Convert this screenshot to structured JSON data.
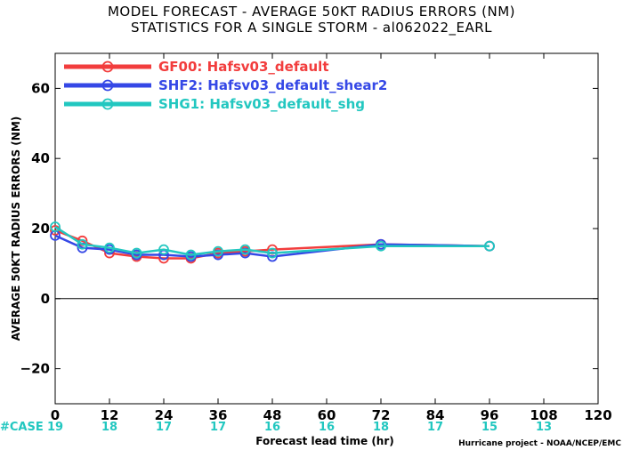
{
  "chart_data": {
    "type": "line",
    "title_line1": "MODEL FORECAST - AVERAGE 50KT RADIUS ERRORS (NM)",
    "title_line2": "STATISTICS FOR A SINGLE STORM - al062022_EARL",
    "xlabel": "Forecast lead time (hr)",
    "ylabel": "AVERAGE 50KT RADIUS ERRORS (NM)",
    "credit": "Hurricane project - NOAA/NCEP/EMC",
    "xlim": [
      0,
      120
    ],
    "ylim": [
      -30,
      70
    ],
    "xticks": [
      0,
      12,
      24,
      36,
      48,
      60,
      72,
      84,
      96,
      108,
      120
    ],
    "yticks": [
      -20,
      0,
      20,
      40,
      60
    ],
    "zero_line": true,
    "legend_position": "top-left",
    "case_label": "#CASE",
    "cases": [
      {
        "x": 0,
        "n": "19"
      },
      {
        "x": 12,
        "n": "18"
      },
      {
        "x": 24,
        "n": "17"
      },
      {
        "x": 36,
        "n": "17"
      },
      {
        "x": 48,
        "n": "16"
      },
      {
        "x": 60,
        "n": "16"
      },
      {
        "x": 72,
        "n": "18"
      },
      {
        "x": 84,
        "n": "17"
      },
      {
        "x": 96,
        "n": "15"
      },
      {
        "x": 108,
        "n": "13"
      }
    ],
    "series": [
      {
        "name": "GF00: Hafsv03_default",
        "color": "#f23d3d",
        "x": [
          0,
          6,
          12,
          18,
          24,
          30,
          36,
          42,
          48,
          72,
          96
        ],
        "y": [
          19.5,
          16.5,
          13.0,
          12.0,
          11.5,
          11.5,
          13.0,
          13.5,
          14.0,
          15.5,
          15.0
        ]
      },
      {
        "name": "SHF2: Hafsv03_default_shear2",
        "color": "#3548e6",
        "x": [
          0,
          6,
          12,
          18,
          24,
          30,
          36,
          42,
          48,
          72,
          96
        ],
        "y": [
          18.0,
          14.5,
          14.0,
          12.5,
          12.5,
          12.0,
          12.5,
          13.0,
          12.0,
          15.5,
          15.0
        ]
      },
      {
        "name": "SHG1: Hafsv03_default_shg",
        "color": "#22c7c0",
        "x": [
          0,
          6,
          12,
          18,
          24,
          30,
          36,
          42,
          48,
          72,
          96
        ],
        "y": [
          20.5,
          15.5,
          14.5,
          13.0,
          14.0,
          12.5,
          13.5,
          14.0,
          13.0,
          15.0,
          15.0
        ]
      }
    ]
  }
}
